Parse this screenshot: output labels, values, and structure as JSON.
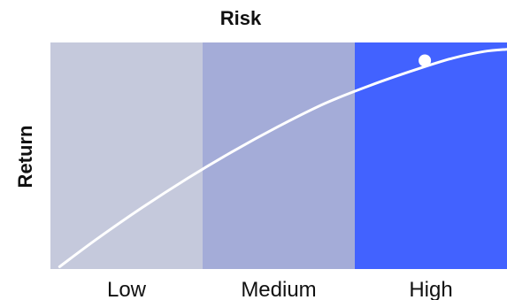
{
  "chart_data": {
    "type": "area",
    "title": "Risk",
    "ylabel": "Return",
    "xlabel": "",
    "categories": [
      "Low",
      "Medium",
      "High"
    ],
    "zone_colors": [
      "#c5c9dc",
      "#a4acd8",
      "#4262ff"
    ],
    "curve_color": "#ffffff",
    "curve": [
      {
        "x": 0.02,
        "y": 0.01
      },
      {
        "x": 0.1,
        "y": 0.13
      },
      {
        "x": 0.2,
        "y": 0.27
      },
      {
        "x": 0.3,
        "y": 0.4
      },
      {
        "x": 0.4,
        "y": 0.52
      },
      {
        "x": 0.5,
        "y": 0.63
      },
      {
        "x": 0.6,
        "y": 0.73
      },
      {
        "x": 0.7,
        "y": 0.81
      },
      {
        "x": 0.8,
        "y": 0.88
      },
      {
        "x": 0.88,
        "y": 0.93
      },
      {
        "x": 0.95,
        "y": 0.96
      },
      {
        "x": 1.0,
        "y": 0.97
      }
    ],
    "highlight_point": {
      "x": 0.82,
      "y": 0.92
    },
    "xlim": [
      0,
      1
    ],
    "ylim": [
      0,
      1
    ]
  }
}
